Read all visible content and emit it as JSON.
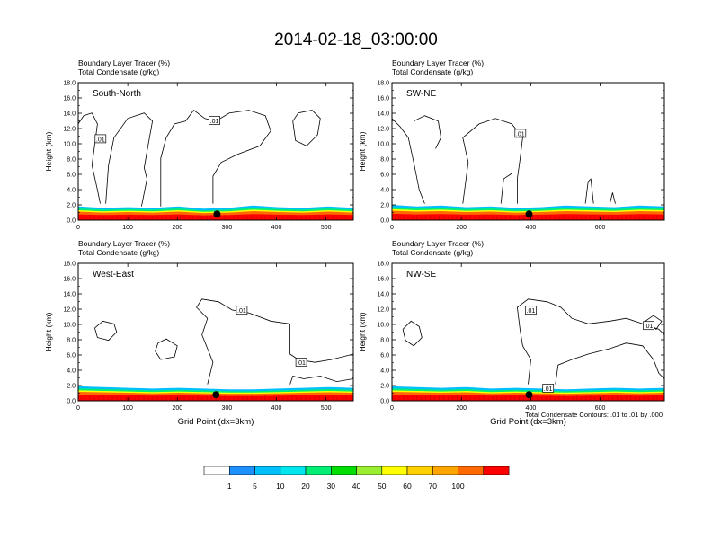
{
  "chart_data": {
    "type": "heatmap",
    "title": "2014-02-18_03:00:00",
    "panels": [
      {
        "name": "South-North",
        "header_line1": "Boundary Layer Tracer   (%)",
        "header_line2": "Total Condensate   (g/kg)",
        "ylabel": "Height (km)",
        "xlabel": "",
        "xlim": [
          0,
          555
        ],
        "ylim": [
          0,
          18
        ],
        "xticks": [
          0,
          100,
          200,
          300,
          400,
          500
        ],
        "yticks": [
          "0.0",
          "2.0",
          "4.0",
          "6.0",
          "8.0",
          "10.0",
          "12.0",
          "14.0",
          "16.0",
          "18.0"
        ],
        "marker_x": 280,
        "contour_labels": [
          {
            "text": ".01",
            "x": 45,
            "y": 10.6
          },
          {
            "text": ".01",
            "x": 275,
            "y": 13.0
          }
        ],
        "tracer_top_km": [
          1.8,
          1.6,
          1.7,
          1.6,
          1.8,
          1.5,
          1.6,
          1.9,
          1.7,
          1.6,
          1.8,
          1.6
        ]
      },
      {
        "name": "SW-NE",
        "header_line1": "Boundary Layer Tracer   (%)",
        "header_line2": "Total Condensate   (g/kg)",
        "ylabel": "Height (km)",
        "xlabel": "",
        "xlim": [
          0,
          785
        ],
        "ylim": [
          0,
          18
        ],
        "xticks": [
          0,
          200,
          400,
          600
        ],
        "yticks": [
          "0.0",
          "2.0",
          "4.0",
          "6.0",
          "8.0",
          "10.0",
          "12.0",
          "14.0",
          "16.0",
          "18.0"
        ],
        "marker_x": 395,
        "contour_labels": [
          {
            "text": ".01",
            "x": 370,
            "y": 11.3
          }
        ],
        "tracer_top_km": [
          2.0,
          1.8,
          1.9,
          1.7,
          1.8,
          1.6,
          1.7,
          1.9,
          1.8,
          1.7,
          1.9,
          1.8
        ]
      },
      {
        "name": "West-East",
        "header_line1": "Boundary Layer Tracer   (%)",
        "header_line2": "Total Condensate   (g/kg)",
        "ylabel": "Height (km)",
        "xlabel": "Grid Point (dx=3km)",
        "xlim": [
          0,
          555
        ],
        "ylim": [
          0,
          18
        ],
        "xticks": [
          0,
          100,
          200,
          300,
          400,
          500
        ],
        "yticks": [
          "0.0",
          "2.0",
          "4.0",
          "6.0",
          "8.0",
          "10.0",
          "12.0",
          "14.0",
          "16.0",
          "18.0"
        ],
        "marker_x": 278,
        "contour_labels": [
          {
            "text": ".01",
            "x": 330,
            "y": 11.8
          },
          {
            "text": ".01",
            "x": 450,
            "y": 5.0
          }
        ],
        "tracer_top_km": [
          1.9,
          1.8,
          1.7,
          1.6,
          1.7,
          1.6,
          1.5,
          1.5,
          1.6,
          1.7,
          1.8,
          1.7
        ]
      },
      {
        "name": "NW-SE",
        "header_line1": "Boundary Layer Tracer   (%)",
        "header_line2": "Total Condensate   (g/kg)",
        "ylabel": "Height (km)",
        "xlabel": "Grid Point (dx=3km)",
        "xlim": [
          0,
          785
        ],
        "ylim": [
          0,
          18
        ],
        "xticks": [
          0,
          200,
          400,
          600
        ],
        "yticks": [
          "0.0",
          "2.0",
          "4.0",
          "6.0",
          "8.0",
          "10.0",
          "12.0",
          "14.0",
          "16.0",
          "18.0"
        ],
        "marker_x": 395,
        "contour_labels": [
          {
            "text": ".01",
            "x": 400,
            "y": 11.8
          },
          {
            "text": ".01",
            "x": 740,
            "y": 9.8
          },
          {
            "text": ".01",
            "x": 450,
            "y": 1.6
          }
        ],
        "tracer_top_km": [
          1.9,
          1.8,
          1.7,
          1.8,
          1.6,
          1.7,
          1.6,
          1.5,
          1.6,
          1.7,
          1.6,
          1.7
        ]
      }
    ],
    "contour_note": "Total Condensate Contours: .01 to .01 by .000",
    "colorbar": {
      "labels": [
        "1",
        "5",
        "10",
        "20",
        "30",
        "40",
        "50",
        "60",
        "70",
        "100"
      ],
      "colors": [
        "#ffffff",
        "#1e90ff",
        "#00bfff",
        "#00e5ee",
        "#00ee76",
        "#00dd00",
        "#9aee30",
        "#ffff00",
        "#ffd000",
        "#ffa500",
        "#ff6a00",
        "#ff0000"
      ]
    }
  }
}
